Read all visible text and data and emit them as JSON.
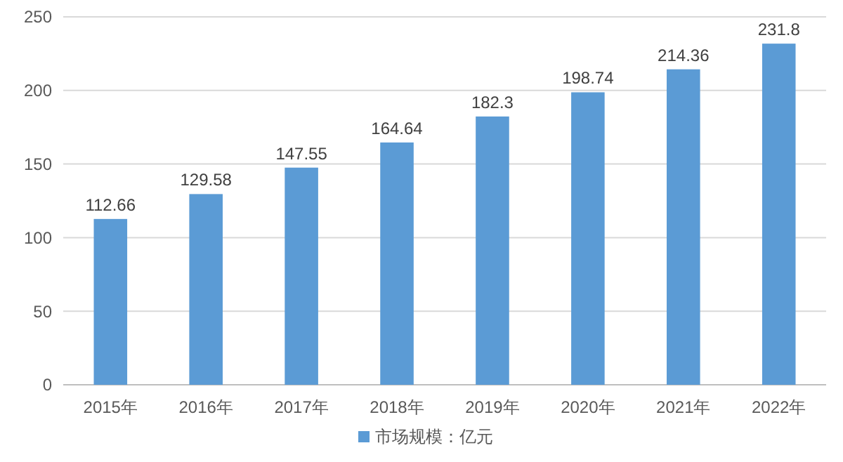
{
  "chart_data": {
    "type": "bar",
    "categories": [
      "2015年",
      "2016年",
      "2017年",
      "2018年",
      "2019年",
      "2020年",
      "2021年",
      "2022年"
    ],
    "series": [
      {
        "name": "市场规模：亿元",
        "color": "#5b9bd5",
        "values": [
          112.66,
          129.58,
          147.55,
          164.64,
          182.3,
          198.74,
          214.36,
          231.8
        ]
      }
    ],
    "ylim": [
      0,
      250
    ],
    "yticks": [
      0,
      50,
      100,
      150,
      200,
      250
    ],
    "grid": "y",
    "legend": "bottom",
    "data_labels": true
  }
}
